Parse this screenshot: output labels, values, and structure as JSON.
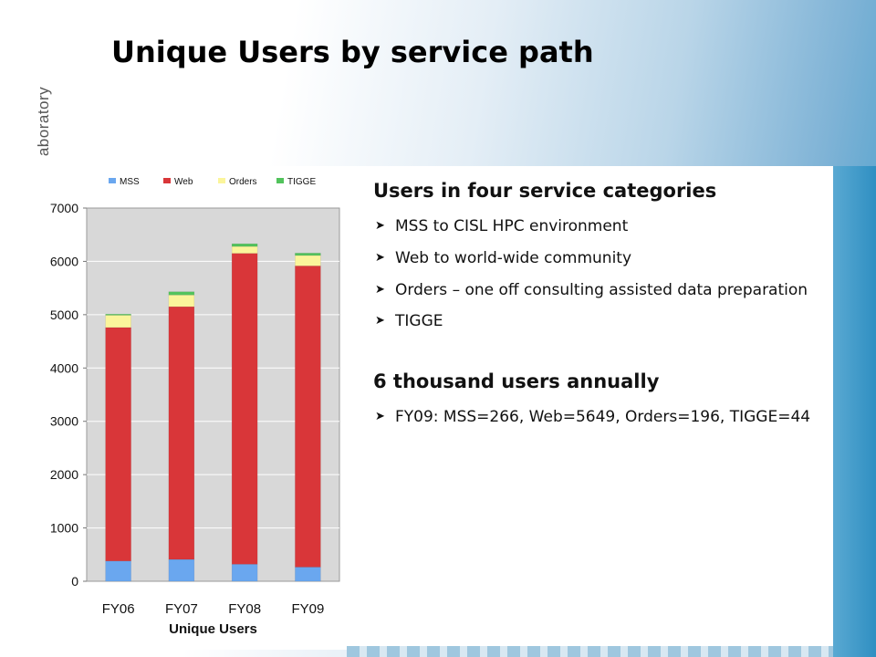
{
  "slide": {
    "title": "Unique Users by service path",
    "side_label": "aboratory"
  },
  "colors": {
    "MSS": "#6aa7ef",
    "Web": "#d93639",
    "Orders": "#fbf59b",
    "TIGGE": "#52c35c",
    "plot_background": "#d8d8d8"
  },
  "chart_data": {
    "type": "bar",
    "stacked": true,
    "title": "",
    "xlabel": "Unique Users",
    "ylabel": "",
    "ylim": [
      0,
      7000
    ],
    "yticks": [
      0,
      1000,
      2000,
      3000,
      4000,
      5000,
      6000,
      7000
    ],
    "grid": true,
    "legend_position": "top",
    "categories": [
      "FY06",
      "FY07",
      "FY08",
      "FY09"
    ],
    "series": [
      {
        "name": "MSS",
        "values": [
          380,
          410,
          320,
          266
        ]
      },
      {
        "name": "Web",
        "values": [
          4380,
          4740,
          5830,
          5649
        ]
      },
      {
        "name": "Orders",
        "values": [
          230,
          220,
          130,
          196
        ]
      },
      {
        "name": "TIGGE",
        "values": [
          20,
          60,
          50,
          44
        ]
      }
    ]
  },
  "text_panel": {
    "heading1": "Users in four service categories",
    "bullets1": [
      "MSS to CISL HPC environment",
      "Web to world-wide community",
      "Orders – one off consulting assisted data preparation",
      "TIGGE"
    ],
    "heading2": "6 thousand users annually",
    "bullets2": [
      "FY09: MSS=266, Web=5649, Orders=196, TIGGE=44"
    ]
  }
}
